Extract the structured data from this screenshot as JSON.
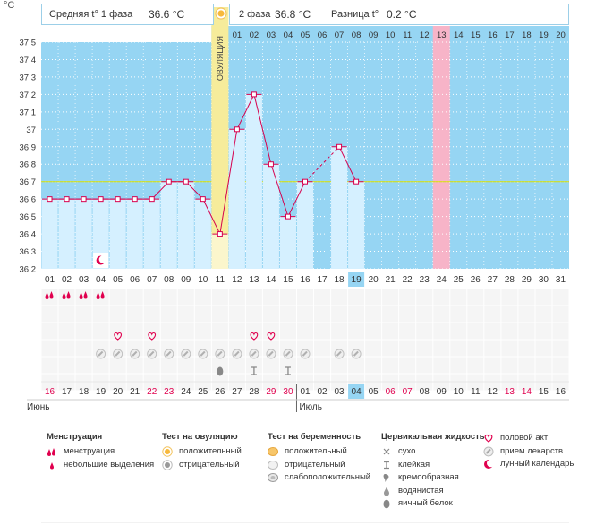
{
  "header": {
    "deg_label": "°C",
    "phase1_label": "Средняя t° 1 фаза",
    "phase1_value": "36.6 °C",
    "phase2_label": "2 фаза",
    "phase2_value": "36.8 °C",
    "diff_label": "Разница t°",
    "diff_value": "0.2 °C"
  },
  "ovulation_label": "ОВУЛЯЦИЯ",
  "chart_data": {
    "type": "line",
    "title": "",
    "ylabel": "°C",
    "ylim": [
      36.2,
      37.5
    ],
    "yticks": [
      "37.5",
      "37.4",
      "37.3",
      "37.2",
      "37.1",
      "37",
      "36.9",
      "36.8",
      "36.7",
      "36.6",
      "36.5",
      "36.4",
      "36.3",
      "36.2"
    ],
    "cycle_days": [
      "01",
      "02",
      "03",
      "04",
      "05",
      "06",
      "07",
      "08",
      "09",
      "10",
      "11",
      "12",
      "13",
      "14",
      "15",
      "16",
      "17",
      "18",
      "19",
      "20",
      "21",
      "22",
      "23",
      "24",
      "25",
      "26",
      "27",
      "28",
      "29",
      "30",
      "31"
    ],
    "phase2_days": [
      "01",
      "02",
      "03",
      "04",
      "05",
      "06",
      "07",
      "08",
      "09",
      "10",
      "11",
      "12",
      "13",
      "14",
      "15",
      "16",
      "17",
      "18",
      "19",
      "20"
    ],
    "ovulation_day": 11,
    "current_day": 19,
    "expected_period_day": 24,
    "coverline": 36.7,
    "series": [
      {
        "values": [
          36.6,
          36.6,
          36.6,
          36.6,
          36.6,
          36.6,
          36.6,
          36.7,
          36.7,
          36.6,
          36.4,
          37.0,
          37.2,
          36.8,
          36.5,
          36.7,
          null,
          36.9,
          36.7
        ]
      }
    ],
    "dashed_segments": [
      [
        16,
        18
      ]
    ],
    "calendar_days": [
      "16",
      "17",
      "18",
      "19",
      "20",
      "21",
      "22",
      "23",
      "24",
      "25",
      "26",
      "27",
      "28",
      "29",
      "30",
      "01",
      "02",
      "03",
      "04",
      "05",
      "06",
      "07",
      "08",
      "09",
      "10",
      "11",
      "12",
      "13",
      "14",
      "15",
      "16"
    ],
    "month_labels": [
      "Июнь",
      "Июль"
    ],
    "weekend_days": [
      1,
      7,
      8,
      14,
      15,
      21,
      22,
      28,
      29
    ],
    "markers": {
      "lunar": [
        4
      ],
      "menstruation": [
        1,
        2,
        3,
        4
      ],
      "intercourse": [
        5,
        7,
        13,
        14
      ],
      "medication": [
        4,
        5,
        6,
        7,
        8,
        9,
        10,
        11,
        12,
        13,
        14,
        15,
        16,
        18,
        19
      ],
      "mucus_egg_white": [
        11
      ],
      "mucus_sticky": [
        13,
        15
      ]
    }
  },
  "legend": {
    "menstruation": {
      "title": "Менструация",
      "items": [
        "менструация",
        "небольшие выделения"
      ]
    },
    "ovulation_test": {
      "title": "Тест на овуляцию",
      "items": [
        "положительный",
        "отрицательный"
      ]
    },
    "pregnancy_test": {
      "title": "Тест на беременность",
      "items": [
        "положительный",
        "отрицательный",
        "слабоположительный"
      ]
    },
    "mucus": {
      "title": "Цервикальная жидкость",
      "items": [
        "сухо",
        "клейкая",
        "кремообразная",
        "водянистая",
        "яичный белок"
      ]
    },
    "other": {
      "items": [
        "половой акт",
        "прием лекарств",
        "лунный календарь"
      ]
    }
  },
  "colors": {
    "background": "#96d5f3",
    "bar": "#d5f0ff",
    "line": "#d6004e",
    "coverline": "#d8e000",
    "ovulation": "#f6ec9b",
    "expected_period": "#f7b4c8",
    "current_day": "#96d5f3",
    "weekend": "#e0004e"
  }
}
